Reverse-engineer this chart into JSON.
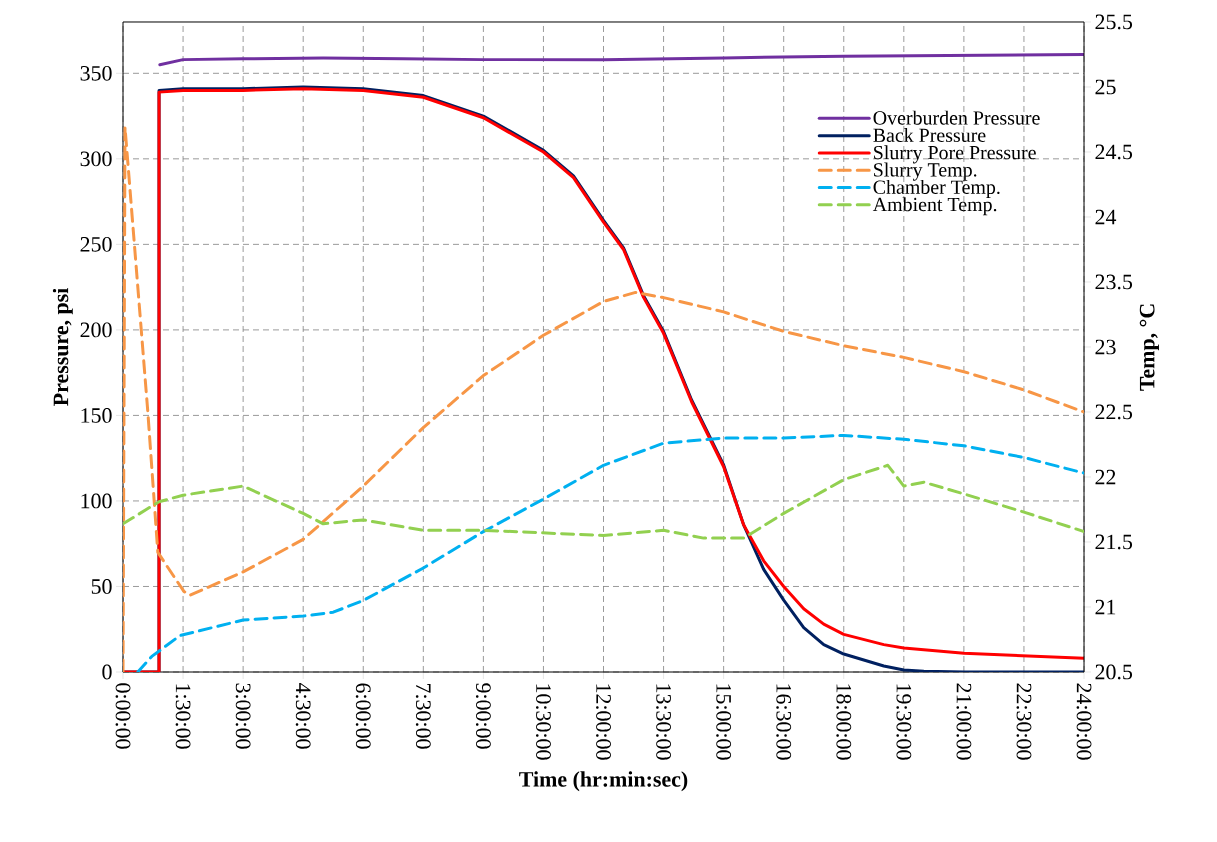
{
  "chart_data": {
    "type": "line",
    "xlabel": "Time (hr:min:sec)",
    "ylabel": "Pressure, psi",
    "y2label": "Temp, °C",
    "xlim": [
      0,
      24
    ],
    "xticks": [
      {
        "value": 0,
        "label": "0:00:00"
      },
      {
        "value": 1.5,
        "label": "1:30:00"
      },
      {
        "value": 3,
        "label": "3:00:00"
      },
      {
        "value": 4.5,
        "label": "4:30:00"
      },
      {
        "value": 6,
        "label": "6:00:00"
      },
      {
        "value": 7.5,
        "label": "7:30:00"
      },
      {
        "value": 9,
        "label": "9:00:00"
      },
      {
        "value": 10.5,
        "label": "10:30:00"
      },
      {
        "value": 12,
        "label": "12:00:00"
      },
      {
        "value": 13.5,
        "label": "13:30:00"
      },
      {
        "value": 15,
        "label": "15:00:00"
      },
      {
        "value": 16.5,
        "label": "16:30:00"
      },
      {
        "value": 18,
        "label": "18:00:00"
      },
      {
        "value": 19.5,
        "label": "19:30:00"
      },
      {
        "value": 21,
        "label": "21:00:00"
      },
      {
        "value": 22.5,
        "label": "22:30:00"
      },
      {
        "value": 24,
        "label": "24:00:00"
      }
    ],
    "ylim": [
      0,
      380
    ],
    "yticks": [
      0,
      50,
      100,
      150,
      200,
      250,
      300,
      350
    ],
    "y2lim": [
      20.5,
      25.5
    ],
    "y2ticks": [
      20.5,
      21,
      21.5,
      22,
      22.5,
      23,
      23.5,
      24,
      24.5,
      25,
      25.5
    ],
    "grid": true,
    "legend": "top right",
    "series": [
      {
        "name": "Overburden Pressure",
        "color": "#7030a0",
        "line_style": "solid",
        "x": [
          0.92,
          1.5,
          3,
          5,
          7,
          9,
          12,
          15,
          18,
          21,
          24
        ],
        "values": [
          355,
          358,
          358.5,
          359,
          358.5,
          358,
          358,
          359,
          360,
          360.5,
          361
        ]
      },
      {
        "name": "Back Pressure",
        "color": "#002060",
        "line_style": "solid",
        "x": [
          0,
          0.9,
          0.9,
          1.5,
          3,
          4.5,
          6,
          7.5,
          9,
          10.5,
          11.25,
          12,
          12.5,
          13,
          13.5,
          14.2,
          15,
          15.5,
          16,
          16.5,
          17,
          17.5,
          18,
          19,
          19.5,
          20,
          21,
          22.5,
          24
        ],
        "values": [
          0,
          0,
          340,
          341,
          341,
          342,
          341,
          337,
          325,
          305,
          290,
          264,
          248,
          220,
          199,
          159,
          121,
          86,
          60,
          42,
          26,
          16,
          10.5,
          3.5,
          1.2,
          0.5,
          0,
          0,
          0
        ]
      },
      {
        "name": "Slurry Pore Pressure",
        "color": "#ff0000",
        "line_style": "solid",
        "x": [
          0,
          0.9,
          0.9,
          1.5,
          3,
          4.5,
          6,
          7.5,
          9,
          10.5,
          11.25,
          12,
          12.5,
          13,
          13.5,
          14.2,
          15,
          15.5,
          16,
          16.5,
          17,
          17.5,
          18,
          19,
          19.5,
          21,
          22.5,
          24
        ],
        "values": [
          0,
          0,
          339,
          340,
          340,
          341,
          340,
          336,
          324,
          304,
          289,
          263,
          247,
          219,
          198,
          158,
          120,
          86,
          65,
          50,
          37,
          28,
          22,
          16,
          14,
          11,
          9.5,
          8
        ]
      },
      {
        "name": "Slurry Temp.",
        "color": "#f79646",
        "line_style": "dashed",
        "axis": "y2",
        "x": [
          0,
          0.05,
          0.62,
          0.87,
          1.52,
          1.67,
          3,
          4.5,
          6,
          7.5,
          9,
          10.5,
          12,
          12.8,
          13.5,
          15,
          16.5,
          18,
          19.5,
          21,
          22.5,
          24
        ],
        "values": [
          20.5,
          24.69,
          22.5,
          21.42,
          21.12,
          21.09,
          21.27,
          21.52,
          21.93,
          22.38,
          22.78,
          23.09,
          23.35,
          23.42,
          23.38,
          23.27,
          23.12,
          23.01,
          22.92,
          22.81,
          22.67,
          22.5
        ]
      },
      {
        "name": "Chamber Temp.",
        "color": "#00b0f0",
        "line_style": "dashed",
        "axis": "y2",
        "x": [
          0.37,
          0.72,
          1.42,
          3,
          4.5,
          5.25,
          6,
          7.5,
          9,
          10.5,
          12,
          13.5,
          15,
          16.5,
          18,
          19.5,
          21,
          22.5,
          24
        ],
        "values": [
          20.5,
          20.62,
          20.78,
          20.9,
          20.93,
          20.96,
          21.05,
          21.3,
          21.58,
          21.83,
          22.09,
          22.26,
          22.3,
          22.3,
          22.32,
          22.29,
          22.24,
          22.15,
          22.03
        ]
      },
      {
        "name": "Ambient Temp.",
        "color": "#92d050",
        "line_style": "dashed",
        "axis": "y2",
        "x": [
          0,
          0.9,
          1.5,
          3,
          4.5,
          5,
          6,
          7.5,
          9,
          12,
          13.5,
          14.5,
          15.5,
          16.5,
          18,
          19.1,
          19.5,
          20,
          21,
          22.5,
          24
        ],
        "values": [
          21.64,
          21.81,
          21.86,
          21.93,
          21.72,
          21.64,
          21.67,
          21.59,
          21.59,
          21.55,
          21.59,
          21.53,
          21.53,
          21.72,
          21.98,
          22.09,
          21.93,
          21.96,
          21.87,
          21.73,
          21.58
        ]
      }
    ]
  }
}
